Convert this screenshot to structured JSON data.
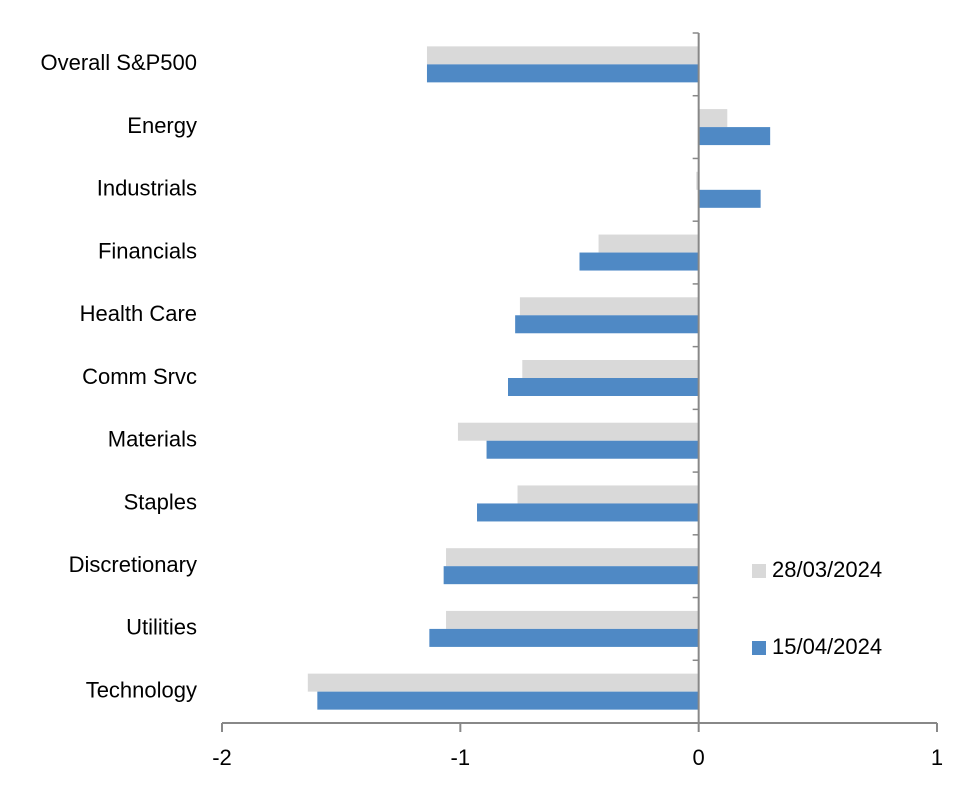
{
  "chart_data": {
    "type": "hbar",
    "categories": [
      "Overall S&P500",
      "Energy",
      "Industrials",
      "Financials",
      "Health Care",
      "Comm Srvc",
      "Materials",
      "Staples",
      "Discretionary",
      "Utilities",
      "Technology"
    ],
    "series": [
      {
        "name": "28/03/2024",
        "color": "#d9d9d9",
        "values": [
          -1.14,
          0.12,
          -0.01,
          -0.42,
          -0.75,
          -0.74,
          -1.01,
          -0.76,
          -1.06,
          -1.06,
          -1.64
        ]
      },
      {
        "name": "15/04/2024",
        "color": "#4f89c5",
        "values": [
          -1.14,
          0.3,
          0.26,
          -0.5,
          -0.77,
          -0.8,
          -0.89,
          -0.93,
          -1.07,
          -1.13,
          -1.6
        ]
      }
    ],
    "xlim": [
      -2,
      1
    ],
    "xticks": [
      -2,
      -1,
      0,
      1
    ],
    "legend": "bottom-right"
  }
}
